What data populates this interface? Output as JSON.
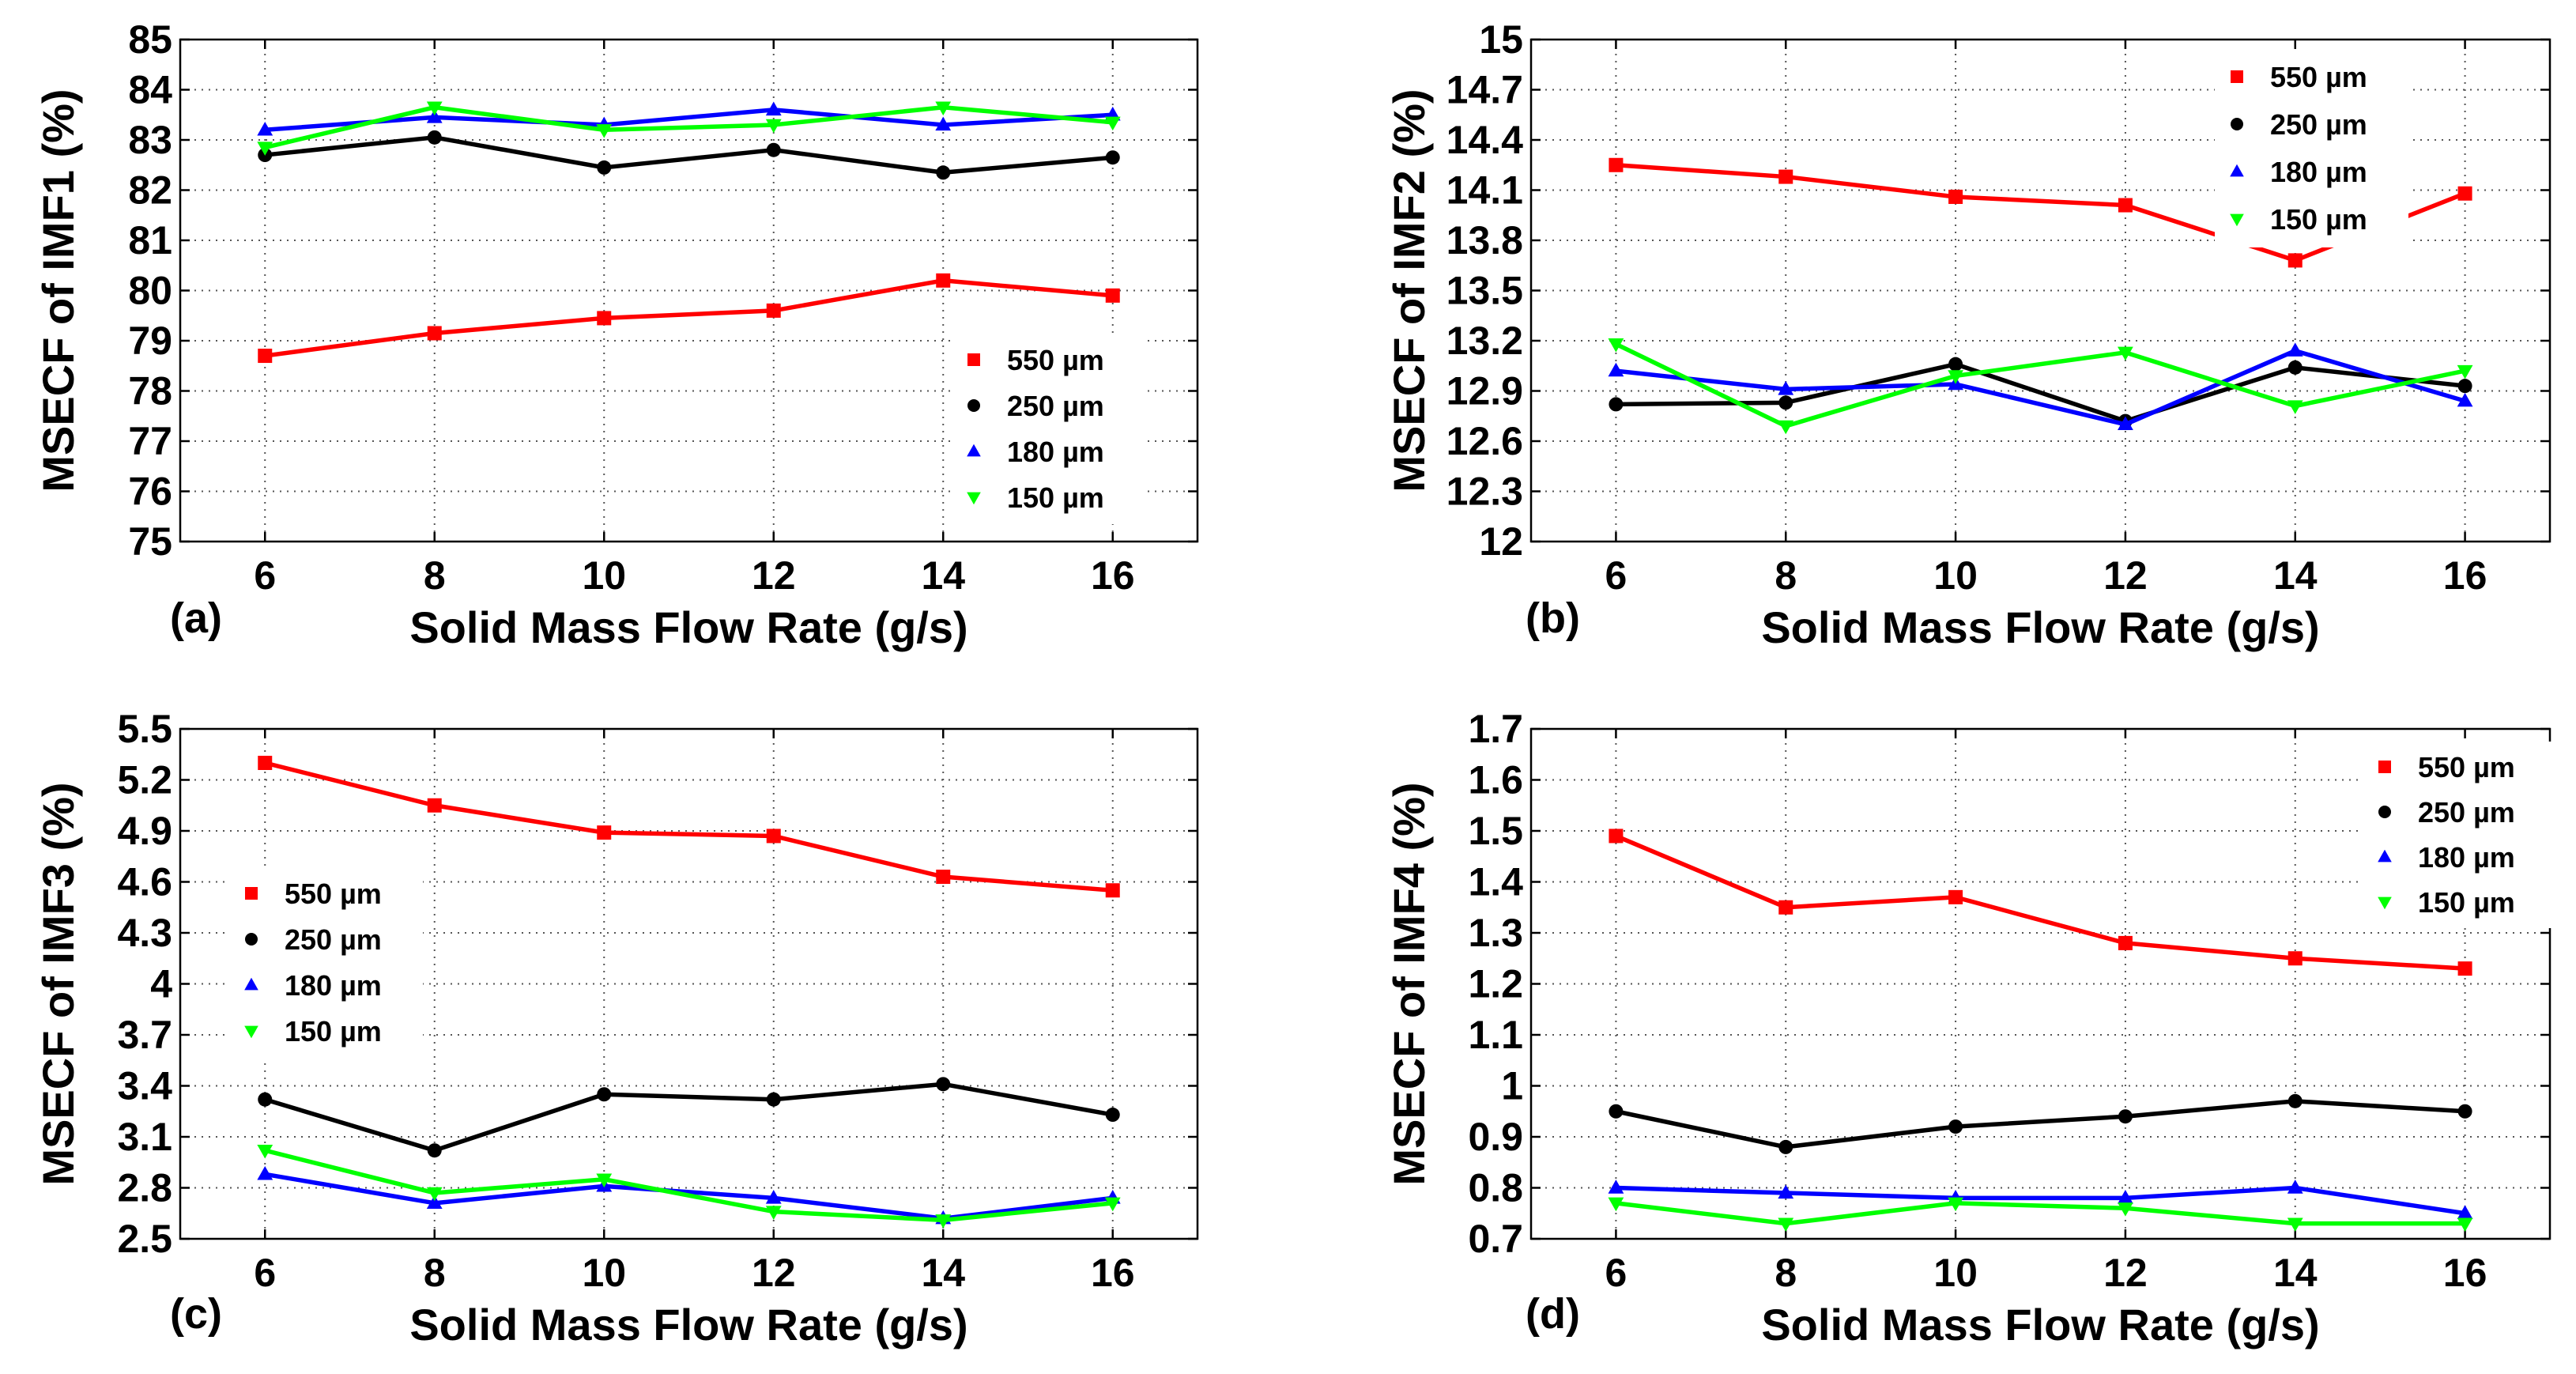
{
  "chart_data": [
    {
      "type": "line",
      "panel_label": "(a)",
      "xlabel": "Solid Mass Flow Rate (g/s)",
      "ylabel": "MSECF of IMF1 (%)",
      "x": [
        6,
        8,
        10,
        12,
        14,
        16
      ],
      "xlim": [
        5,
        17
      ],
      "xticks": [
        "6",
        "8",
        "10",
        "12",
        "14",
        "16"
      ],
      "ylim": [
        75,
        85
      ],
      "yticks": [
        "75",
        "76",
        "77",
        "78",
        "79",
        "80",
        "81",
        "82",
        "83",
        "84",
        "85"
      ],
      "grid": true,
      "legend_position": "lower-right",
      "series": [
        {
          "name": "550 µm",
          "marker": "square",
          "color": "#ff0000",
          "values": [
            78.7,
            79.15,
            79.45,
            79.6,
            80.2,
            79.9
          ]
        },
        {
          "name": "250 µm",
          "marker": "circle",
          "color": "#000000",
          "values": [
            82.7,
            83.05,
            82.45,
            82.8,
            82.35,
            82.65
          ]
        },
        {
          "name": "180 µm",
          "marker": "triangle-up",
          "color": "#0000ff",
          "values": [
            83.2,
            83.45,
            83.3,
            83.6,
            83.3,
            83.5
          ]
        },
        {
          "name": "150 µm",
          "marker": "triangle-down",
          "color": "#00ff00",
          "values": [
            82.85,
            83.65,
            83.2,
            83.3,
            83.65,
            83.35
          ]
        }
      ]
    },
    {
      "type": "line",
      "panel_label": "(b)",
      "xlabel": "Solid Mass Flow Rate (g/s)",
      "ylabel": "MSECF of IMF2 (%)",
      "x": [
        6,
        8,
        10,
        12,
        14,
        16
      ],
      "xlim": [
        5,
        17
      ],
      "xticks": [
        "6",
        "8",
        "10",
        "12",
        "14",
        "16"
      ],
      "ylim": [
        12,
        15
      ],
      "yticks": [
        "12",
        "12.3",
        "12.6",
        "12.9",
        "13.2",
        "13.5",
        "13.8",
        "14.1",
        "14.4",
        "14.7",
        "15"
      ],
      "grid": true,
      "legend_position": "top-right",
      "series": [
        {
          "name": "550 µm",
          "marker": "square",
          "color": "#ff0000",
          "values": [
            14.25,
            14.18,
            14.06,
            14.01,
            13.68,
            14.08
          ]
        },
        {
          "name": "250 µm",
          "marker": "circle",
          "color": "#000000",
          "values": [
            12.82,
            12.83,
            13.06,
            12.72,
            13.04,
            12.93
          ]
        },
        {
          "name": "180 µm",
          "marker": "triangle-up",
          "color": "#0000ff",
          "values": [
            13.02,
            12.91,
            12.94,
            12.7,
            13.14,
            12.84
          ]
        },
        {
          "name": "150 µm",
          "marker": "triangle-down",
          "color": "#00ff00",
          "values": [
            13.18,
            12.69,
            12.99,
            13.13,
            12.81,
            13.02
          ]
        }
      ]
    },
    {
      "type": "line",
      "panel_label": "(c)",
      "xlabel": "Solid Mass Flow Rate (g/s)",
      "ylabel": "MSECF of IMF3 (%)",
      "x": [
        6,
        8,
        10,
        12,
        14,
        16
      ],
      "xlim": [
        5,
        17
      ],
      "xticks": [
        "6",
        "8",
        "10",
        "12",
        "14",
        "16"
      ],
      "ylim": [
        2.5,
        5.5
      ],
      "yticks": [
        "2.5",
        "2.8",
        "3.1",
        "3.4",
        "3.7",
        "4",
        "4.3",
        "4.6",
        "4.9",
        "5.2",
        "5.5"
      ],
      "grid": true,
      "legend_position": "center-left",
      "series": [
        {
          "name": "550 µm",
          "marker": "square",
          "color": "#ff0000",
          "values": [
            5.3,
            5.05,
            4.89,
            4.87,
            4.63,
            4.55
          ]
        },
        {
          "name": "250 µm",
          "marker": "circle",
          "color": "#000000",
          "values": [
            3.32,
            3.02,
            3.35,
            3.32,
            3.41,
            3.23
          ]
        },
        {
          "name": "180 µm",
          "marker": "triangle-up",
          "color": "#0000ff",
          "values": [
            2.88,
            2.71,
            2.81,
            2.74,
            2.62,
            2.74
          ]
        },
        {
          "name": "150 µm",
          "marker": "triangle-down",
          "color": "#00ff00",
          "values": [
            3.02,
            2.77,
            2.85,
            2.66,
            2.61,
            2.71
          ]
        }
      ]
    },
    {
      "type": "line",
      "panel_label": "(d)",
      "xlabel": "Solid Mass Flow Rate (g/s)",
      "ylabel": "MSECF of IMF4 (%)",
      "x": [
        6,
        8,
        10,
        12,
        14,
        16
      ],
      "xlim": [
        5,
        17
      ],
      "xticks": [
        "6",
        "8",
        "10",
        "12",
        "14",
        "16"
      ],
      "ylim": [
        0.7,
        1.7
      ],
      "yticks": [
        "0.7",
        "0.8",
        "0.9",
        "1",
        "1.1",
        "1.2",
        "1.3",
        "1.4",
        "1.5",
        "1.6",
        "1.7"
      ],
      "grid": true,
      "legend_position": "top-right",
      "series": [
        {
          "name": "550 µm",
          "marker": "square",
          "color": "#ff0000",
          "values": [
            1.49,
            1.35,
            1.37,
            1.28,
            1.25,
            1.23
          ]
        },
        {
          "name": "250 µm",
          "marker": "circle",
          "color": "#000000",
          "values": [
            0.95,
            0.88,
            0.92,
            0.94,
            0.97,
            0.95
          ]
        },
        {
          "name": "180 µm",
          "marker": "triangle-up",
          "color": "#0000ff",
          "values": [
            0.8,
            0.79,
            0.78,
            0.78,
            0.8,
            0.75
          ]
        },
        {
          "name": "150 µm",
          "marker": "triangle-down",
          "color": "#00ff00",
          "values": [
            0.77,
            0.73,
            0.77,
            0.76,
            0.73,
            0.73
          ]
        }
      ]
    }
  ]
}
